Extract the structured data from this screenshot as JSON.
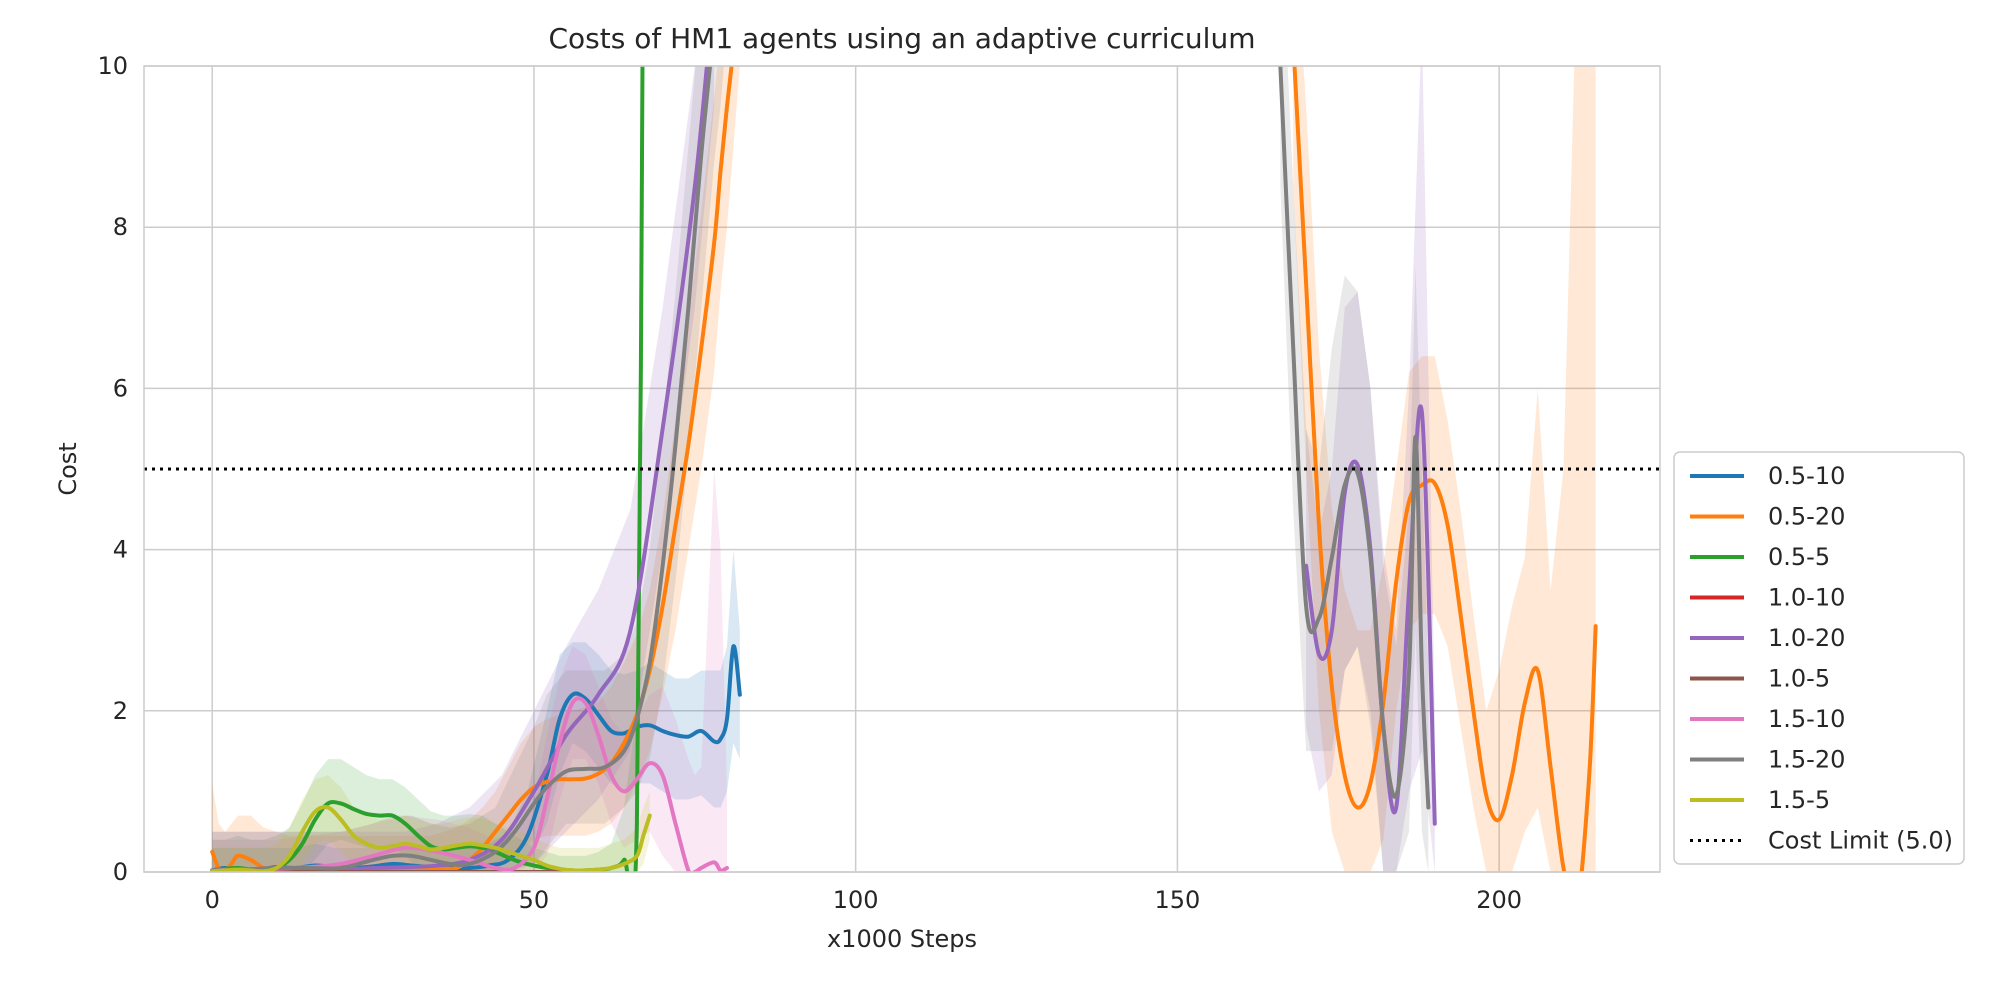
{
  "chart_data": {
    "type": "line",
    "title": "Costs of HM1 agents using an adaptive curriculum",
    "xlabel": "x1000 Steps",
    "ylabel": "Cost",
    "xlim": [
      -10.6,
      225
    ],
    "ylim": [
      0,
      10
    ],
    "x_ticks": [
      0,
      50,
      100,
      150,
      200
    ],
    "y_ticks": [
      0,
      2,
      4,
      6,
      8,
      10
    ],
    "grid": true,
    "legend_position": "lower-right-outside",
    "cost_limit": {
      "label": "Cost Limit (5.0)",
      "value": 5.0,
      "color": "#000000",
      "style": "dotted"
    },
    "series": [
      {
        "name": "0.5-10",
        "color": "#1f77b4",
        "x": [
          0,
          2,
          5,
          8,
          10,
          13,
          16,
          19,
          22,
          25,
          28,
          31,
          34,
          37,
          40,
          43,
          46,
          49,
          52,
          54,
          56,
          58,
          60,
          62,
          64,
          66,
          68,
          70,
          72,
          74,
          76,
          78,
          79,
          80,
          81,
          82
        ],
        "y": [
          0.02,
          0.05,
          0.03,
          0.04,
          0.06,
          0.05,
          0.08,
          0.06,
          0.05,
          0.07,
          0.1,
          0.08,
          0.06,
          0.05,
          0.05,
          0.08,
          0.15,
          0.45,
          1.2,
          1.9,
          2.2,
          2.15,
          1.95,
          1.75,
          1.72,
          1.8,
          1.82,
          1.75,
          1.7,
          1.68,
          1.75,
          1.62,
          1.65,
          1.9,
          2.8,
          2.2
        ],
        "band_upper": [
          0.3,
          0.3,
          0.3,
          0.3,
          0.3,
          0.3,
          0.35,
          0.3,
          0.3,
          0.3,
          0.35,
          0.3,
          0.3,
          0.3,
          0.3,
          0.35,
          0.5,
          1.0,
          2.0,
          2.7,
          2.85,
          2.85,
          2.7,
          2.5,
          2.45,
          2.5,
          2.6,
          2.5,
          2.4,
          2.4,
          2.5,
          2.5,
          2.5,
          2.8,
          4.0,
          3.0
        ],
        "band_lower": [
          0,
          0,
          0,
          0,
          0,
          0,
          0,
          0,
          0,
          0,
          0,
          0,
          0,
          0,
          0,
          0,
          0,
          0.1,
          0.6,
          1.2,
          1.6,
          1.5,
          1.3,
          1.1,
          1.0,
          1.1,
          1.1,
          1.0,
          0.9,
          0.9,
          0.95,
          0.8,
          0.8,
          1.0,
          1.6,
          1.4
        ]
      },
      {
        "name": "0.5-20",
        "color": "#ff7f0e",
        "x": [
          0,
          1,
          2,
          3,
          4,
          6,
          8,
          10,
          12,
          14,
          16,
          18,
          20,
          22,
          24,
          26,
          28,
          30,
          32,
          34,
          36,
          38,
          40,
          42,
          44,
          46,
          48,
          50,
          52,
          54,
          56,
          58,
          60,
          62,
          64,
          66,
          68,
          70,
          72,
          74,
          76,
          78,
          79,
          80,
          81,
          82,
          168,
          170,
          172,
          174,
          176,
          178,
          180,
          182,
          184,
          186,
          188,
          190,
          192,
          194,
          196,
          198,
          200,
          202,
          204,
          206,
          208,
          210,
          212,
          214,
          215
        ],
        "y": [
          0.25,
          0.05,
          0.02,
          0.1,
          0.2,
          0.15,
          0.05,
          0.03,
          0.02,
          0.03,
          0.04,
          0.05,
          0.05,
          0.04,
          0.03,
          0.02,
          0.02,
          0.02,
          0.02,
          0.03,
          0.04,
          0.05,
          0.15,
          0.3,
          0.5,
          0.7,
          0.9,
          1.05,
          1.12,
          1.15,
          1.15,
          1.16,
          1.22,
          1.35,
          1.6,
          1.95,
          2.5,
          3.3,
          4.3,
          5.3,
          6.5,
          7.8,
          8.7,
          9.5,
          10.2,
          11,
          10.3,
          7.3,
          4.3,
          2.3,
          1.2,
          0.8,
          1.1,
          2.1,
          3.6,
          4.6,
          4.8,
          4.82,
          4.3,
          3.2,
          2.0,
          0.95,
          0.65,
          1.2,
          2.1,
          2.5,
          1.3,
          0.05,
          -0.5,
          1.2,
          3.05
        ],
        "band_upper": [
          1.1,
          0.6,
          0.5,
          0.6,
          0.7,
          0.7,
          0.55,
          0.5,
          0.45,
          0.45,
          0.45,
          0.45,
          0.45,
          0.45,
          0.45,
          0.45,
          0.45,
          0.45,
          0.45,
          0.45,
          0.5,
          0.55,
          0.65,
          0.8,
          1.0,
          1.3,
          1.6,
          1.8,
          1.9,
          1.95,
          2.0,
          2.05,
          2.1,
          2.3,
          2.6,
          2.95,
          3.5,
          4.4,
          5.6,
          6.8,
          8.2,
          9.6,
          10.4,
          11,
          11.5,
          12,
          12,
          9.5,
          6.5,
          4.5,
          3.5,
          3.0,
          3.0,
          3.8,
          5.0,
          6.2,
          6.4,
          6.4,
          5.6,
          4.5,
          3.2,
          2.0,
          2.5,
          3.3,
          3.9,
          6.0,
          3.5,
          5.0,
          11,
          11,
          11
        ],
        "band_lower": [
          0,
          0,
          0,
          0,
          0,
          0,
          0,
          0,
          0,
          0,
          0,
          0,
          0,
          0,
          0,
          0,
          0,
          0,
          0,
          0,
          0,
          0,
          0,
          0,
          0.05,
          0.15,
          0.3,
          0.4,
          0.45,
          0.45,
          0.45,
          0.45,
          0.5,
          0.6,
          0.8,
          1.1,
          1.5,
          2.2,
          3.0,
          4.0,
          5.0,
          6.2,
          7.2,
          8.0,
          9.0,
          10,
          8.5,
          5.0,
          2.0,
          0.5,
          0,
          0,
          0,
          0.4,
          2.0,
          3.0,
          3.2,
          3.2,
          2.8,
          1.8,
          0.8,
          0,
          0,
          0,
          0.5,
          0.8,
          0,
          0,
          0,
          0,
          0
        ]
      },
      {
        "name": "0.5-5",
        "color": "#2ca02c",
        "x": [
          0,
          2,
          4,
          6,
          8,
          10,
          12,
          14,
          16,
          18,
          20,
          22,
          24,
          26,
          28,
          30,
          32,
          34,
          36,
          38,
          40,
          42,
          44,
          46,
          48,
          50,
          52,
          54,
          56,
          58,
          60,
          62,
          64,
          66,
          67
        ],
        "y": [
          0.02,
          0.04,
          0.05,
          0.03,
          0.02,
          0.05,
          0.15,
          0.35,
          0.65,
          0.85,
          0.85,
          0.78,
          0.72,
          0.7,
          0.7,
          0.6,
          0.45,
          0.32,
          0.28,
          0.3,
          0.32,
          0.3,
          0.25,
          0.18,
          0.12,
          0.08,
          0.05,
          0.03,
          0.02,
          0.02,
          0.03,
          0.05,
          0.15,
          0.6,
          12
        ],
        "band_upper": [
          0.4,
          0.4,
          0.45,
          0.4,
          0.4,
          0.45,
          0.55,
          0.85,
          1.2,
          1.4,
          1.4,
          1.3,
          1.2,
          1.15,
          1.15,
          1.05,
          0.9,
          0.75,
          0.7,
          0.7,
          0.72,
          0.7,
          0.6,
          0.5,
          0.4,
          0.3,
          0.25,
          0.2,
          0.2,
          0.2,
          0.25,
          0.35,
          0.8,
          2.0,
          12
        ],
        "band_lower": [
          0,
          0,
          0,
          0,
          0,
          0,
          0,
          0,
          0.15,
          0.35,
          0.4,
          0.35,
          0.3,
          0.3,
          0.3,
          0.2,
          0.05,
          0,
          0,
          0,
          0,
          0,
          0,
          0,
          0,
          0,
          0,
          0,
          0,
          0,
          0,
          0,
          0,
          0,
          10
        ]
      },
      {
        "name": "1.0-10",
        "color": "#d62728",
        "x": [
          0,
          5,
          10,
          15,
          20,
          25,
          30,
          35,
          40,
          45,
          50,
          55,
          60
        ],
        "y": [
          0,
          0,
          0,
          0,
          0,
          0,
          0,
          0,
          0,
          0,
          0,
          0,
          0
        ],
        "band_upper": [
          0,
          0,
          0,
          0,
          0,
          0,
          0,
          0,
          0,
          0,
          0,
          0,
          0
        ],
        "band_lower": [
          0,
          0,
          0,
          0,
          0,
          0,
          0,
          0,
          0,
          0,
          0,
          0,
          0
        ]
      },
      {
        "name": "1.0-20",
        "color": "#9467bd",
        "x": [
          0,
          5,
          10,
          15,
          20,
          25,
          30,
          35,
          40,
          45,
          50,
          55,
          60,
          65,
          70,
          75,
          78,
          170,
          172,
          174,
          176,
          178,
          180,
          182,
          184,
          186,
          188,
          190
        ],
        "y": [
          0.02,
          0.03,
          0.05,
          0.04,
          0.03,
          0.05,
          0.06,
          0.08,
          0.15,
          0.4,
          1.0,
          1.7,
          2.2,
          3.0,
          5.5,
          8.5,
          11,
          3.8,
          2.7,
          3.0,
          4.7,
          5.05,
          4.0,
          1.8,
          0.8,
          3.5,
          5.7,
          0.6
        ],
        "band_upper": [
          0.5,
          0.5,
          0.5,
          0.5,
          0.5,
          0.5,
          0.5,
          0.6,
          0.8,
          1.2,
          2.0,
          2.8,
          3.5,
          4.5,
          7.0,
          10,
          12,
          5.5,
          4.2,
          5.0,
          7.0,
          7.2,
          6.0,
          4.0,
          3.0,
          6.0,
          10.5,
          2.0
        ],
        "band_lower": [
          0,
          0,
          0,
          0,
          0,
          0,
          0,
          0,
          0,
          0,
          0.1,
          0.5,
          0.9,
          1.5,
          4.0,
          7.0,
          9.5,
          1.8,
          1.0,
          1.2,
          2.5,
          2.8,
          2.0,
          0,
          0,
          1.0,
          1.5,
          0
        ]
      },
      {
        "name": "1.0-5",
        "color": "#8c564b",
        "x": [
          0,
          5,
          10,
          15,
          20,
          25,
          30,
          35,
          40,
          45,
          50,
          55,
          60
        ],
        "y": [
          0,
          0,
          0,
          0,
          0,
          0,
          0,
          0,
          0,
          0,
          0,
          0,
          0
        ],
        "band_upper": [
          0,
          0,
          0,
          0,
          0,
          0,
          0,
          0,
          0,
          0,
          0,
          0,
          0
        ],
        "band_lower": [
          0,
          0,
          0,
          0,
          0,
          0,
          0,
          0,
          0,
          0,
          0,
          0,
          0
        ]
      },
      {
        "name": "1.5-10",
        "color": "#e377c2",
        "x": [
          0,
          5,
          10,
          15,
          20,
          25,
          30,
          35,
          40,
          44,
          47,
          50,
          52,
          54,
          56,
          58,
          60,
          62,
          64,
          66,
          68,
          70,
          72,
          74,
          75,
          76,
          78,
          79,
          80
        ],
        "y": [
          0.02,
          0.03,
          0.04,
          0.06,
          0.1,
          0.2,
          0.3,
          0.25,
          0.15,
          0.05,
          0.05,
          0.3,
          0.9,
          1.6,
          2.1,
          2.1,
          1.7,
          1.2,
          1.0,
          1.15,
          1.35,
          1.2,
          0.6,
          0.02,
          0,
          0.05,
          0.12,
          0.02,
          0.05
        ],
        "band_upper": [
          0.4,
          0.4,
          0.4,
          0.45,
          0.5,
          0.6,
          0.7,
          0.65,
          0.55,
          0.4,
          0.4,
          0.9,
          1.7,
          2.4,
          2.8,
          2.7,
          2.3,
          1.9,
          1.7,
          1.9,
          2.2,
          2.3,
          1.9,
          1.4,
          1.2,
          1.3,
          5.0,
          4.0,
          1.0
        ],
        "band_lower": [
          0,
          0,
          0,
          0,
          0,
          0,
          0,
          0,
          0,
          0,
          0,
          0,
          0.2,
          0.9,
          1.4,
          1.4,
          1.1,
          0.6,
          0.3,
          0.4,
          0.5,
          0.2,
          0,
          0,
          0,
          0,
          0,
          0,
          0
        ]
      },
      {
        "name": "1.5-20",
        "color": "#7f7f7f",
        "x": [
          0,
          5,
          10,
          15,
          20,
          25,
          28,
          31,
          34,
          37,
          40,
          44,
          47,
          50,
          52,
          55,
          58,
          61,
          64,
          66,
          68,
          70,
          72,
          74,
          76,
          78,
          79,
          80,
          166,
          168,
          170,
          172,
          174,
          176,
          178,
          180,
          182,
          184,
          186,
          187,
          188,
          189
        ],
        "y": [
          0.02,
          0.03,
          0.05,
          0.05,
          0.05,
          0.15,
          0.2,
          0.2,
          0.15,
          0.1,
          0.1,
          0.25,
          0.5,
          0.85,
          1.05,
          1.25,
          1.28,
          1.3,
          1.5,
          1.9,
          2.6,
          3.8,
          5.3,
          7.0,
          8.9,
          10.5,
          11.2,
          12,
          10.0,
          6.5,
          3.3,
          3.15,
          3.9,
          4.8,
          4.95,
          3.9,
          1.8,
          0.95,
          2.5,
          5.4,
          2.5,
          0.8
        ],
        "band_upper": [
          0.5,
          0.5,
          0.5,
          0.5,
          0.5,
          0.6,
          0.7,
          0.7,
          0.6,
          0.55,
          0.6,
          0.8,
          1.3,
          1.8,
          2.2,
          2.5,
          2.5,
          2.5,
          2.7,
          3.1,
          4.0,
          5.5,
          7.2,
          9.0,
          10.8,
          12,
          12,
          12,
          12,
          8.5,
          5.5,
          5.0,
          6.5,
          7.4,
          7.2,
          6.0,
          3.8,
          2.8,
          4.5,
          7.5,
          5.0,
          2.5
        ],
        "band_lower": [
          0,
          0,
          0,
          0,
          0,
          0,
          0,
          0,
          0,
          0,
          0,
          0,
          0,
          0.1,
          0.3,
          0.6,
          0.6,
          0.6,
          0.8,
          1.0,
          1.4,
          2.3,
          3.6,
          5.2,
          7.0,
          8.8,
          9.5,
          10.5,
          8.5,
          4.5,
          1.5,
          1.5,
          1.5,
          2.5,
          2.8,
          1.8,
          0,
          0,
          0.5,
          3.0,
          0.5,
          0
        ]
      },
      {
        "name": "1.5-5",
        "color": "#bcbd22",
        "x": [
          0,
          2,
          4,
          6,
          8,
          10,
          12,
          14,
          16,
          18,
          20,
          22,
          24,
          26,
          28,
          30,
          32,
          34,
          36,
          38,
          40,
          42,
          44,
          46,
          48,
          50,
          52,
          54,
          56,
          58,
          60,
          62,
          64,
          66,
          67,
          68
        ],
        "y": [
          0.01,
          0.02,
          0.03,
          0.02,
          0.01,
          0.05,
          0.2,
          0.5,
          0.75,
          0.8,
          0.65,
          0.45,
          0.35,
          0.3,
          0.32,
          0.35,
          0.32,
          0.28,
          0.3,
          0.33,
          0.35,
          0.33,
          0.3,
          0.25,
          0.2,
          0.15,
          0.08,
          0.04,
          0.02,
          0.02,
          0.03,
          0.05,
          0.1,
          0.2,
          0.45,
          0.7
        ],
        "band_upper": [
          0.3,
          0.3,
          0.3,
          0.3,
          0.3,
          0.35,
          0.55,
          0.9,
          1.15,
          1.2,
          1.05,
          0.8,
          0.7,
          0.65,
          0.65,
          0.7,
          0.65,
          0.6,
          0.6,
          0.65,
          0.68,
          0.66,
          0.6,
          0.55,
          0.5,
          0.42,
          0.35,
          0.3,
          0.3,
          0.3,
          0.3,
          0.35,
          0.4,
          0.55,
          0.8,
          1.0
        ],
        "band_lower": [
          0,
          0,
          0,
          0,
          0,
          0,
          0,
          0.1,
          0.35,
          0.4,
          0.25,
          0.1,
          0.02,
          0,
          0,
          0,
          0,
          0,
          0,
          0,
          0,
          0,
          0,
          0,
          0,
          0,
          0,
          0,
          0,
          0,
          0,
          0,
          0,
          0,
          0.1,
          0.4
        ]
      }
    ]
  }
}
